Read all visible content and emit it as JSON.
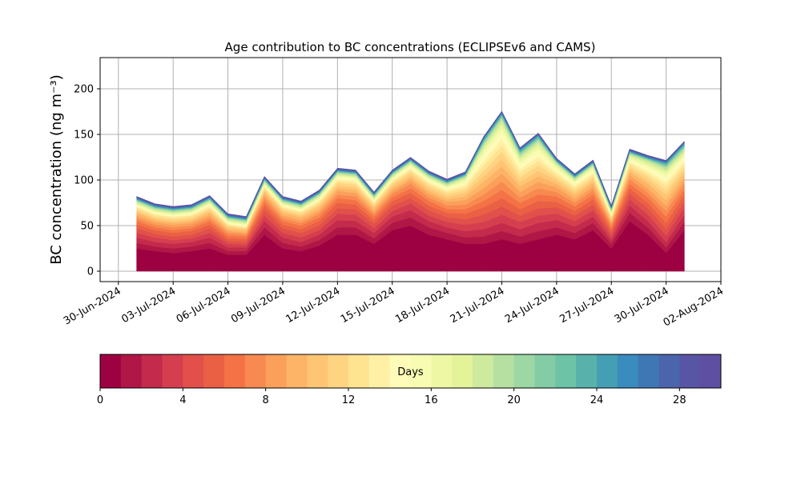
{
  "chart_data": {
    "type": "stacked_area",
    "title": "Age contribution to BC concentrations (ECLIPSEv6 and CAMS)",
    "y_label": "BC concentration (ng m⁻³)",
    "x": [
      "2024-07-01",
      "2024-07-02",
      "2024-07-03",
      "2024-07-04",
      "2024-07-05",
      "2024-07-06",
      "2024-07-07",
      "2024-07-08",
      "2024-07-09",
      "2024-07-10",
      "2024-07-11",
      "2024-07-12",
      "2024-07-13",
      "2024-07-14",
      "2024-07-15",
      "2024-07-16",
      "2024-07-17",
      "2024-07-18",
      "2024-07-19",
      "2024-07-20",
      "2024-07-21",
      "2024-07-22",
      "2024-07-23",
      "2024-07-24",
      "2024-07-25",
      "2024-07-26",
      "2024-07-27",
      "2024-07-28",
      "2024-07-29",
      "2024-07-30",
      "2024-07-31"
    ],
    "xlim": [
      "2024-06-29",
      "2024-08-02"
    ],
    "xticks": [
      {
        "value": "2024-06-30",
        "label": "30-Jun-2024"
      },
      {
        "value": "2024-07-03",
        "label": "03-Jul-2024"
      },
      {
        "value": "2024-07-06",
        "label": "06-Jul-2024"
      },
      {
        "value": "2024-07-09",
        "label": "09-Jul-2024"
      },
      {
        "value": "2024-07-12",
        "label": "12-Jul-2024"
      },
      {
        "value": "2024-07-15",
        "label": "15-Jul-2024"
      },
      {
        "value": "2024-07-18",
        "label": "18-Jul-2024"
      },
      {
        "value": "2024-07-21",
        "label": "21-Jul-2024"
      },
      {
        "value": "2024-07-24",
        "label": "24-Jul-2024"
      },
      {
        "value": "2024-07-27",
        "label": "27-Jul-2024"
      },
      {
        "value": "2024-07-30",
        "label": "30-Jul-2024"
      },
      {
        "value": "2024-08-02",
        "label": "02-Aug-2024"
      }
    ],
    "ylim": [
      -11.4,
      234.2
    ],
    "yticks": [
      0,
      50,
      100,
      150,
      200
    ],
    "grid": true,
    "series": [
      {
        "color": "#9e0142",
        "values": [
          25,
          22,
          20,
          22,
          25,
          18,
          18,
          40,
          25,
          22,
          28,
          40,
          40,
          30,
          45,
          50,
          40,
          35,
          30,
          30,
          35,
          30,
          35,
          40,
          35,
          45,
          25,
          55,
          40,
          20,
          45
        ]
      },
      {
        "color": "#b01646",
        "values": [
          6,
          5,
          5,
          5,
          6,
          4,
          4,
          8,
          6,
          5,
          6,
          8,
          8,
          6,
          8,
          9,
          8,
          7,
          7,
          8,
          9,
          8,
          9,
          8,
          7,
          8,
          5,
          9,
          8,
          6,
          9
        ]
      },
      {
        "color": "#c32a4b",
        "values": [
          6,
          5,
          5,
          5,
          6,
          4,
          4,
          7,
          6,
          5,
          6,
          8,
          7,
          6,
          7,
          8,
          7,
          6,
          7,
          8,
          9,
          8,
          9,
          8,
          7,
          7,
          4,
          8,
          7,
          6,
          8
        ]
      },
      {
        "color": "#d53e4f",
        "values": [
          5,
          5,
          4,
          4,
          5,
          4,
          3,
          6,
          5,
          5,
          5,
          7,
          7,
          5,
          6,
          7,
          6,
          6,
          7,
          8,
          9,
          8,
          8,
          7,
          6,
          7,
          4,
          7,
          7,
          7,
          8
        ]
      },
      {
        "color": "#e1504a",
        "values": [
          5,
          4,
          4,
          4,
          5,
          3,
          3,
          6,
          5,
          5,
          5,
          6,
          6,
          5,
          6,
          6,
          6,
          5,
          6,
          8,
          9,
          7,
          8,
          7,
          6,
          6,
          4,
          6,
          7,
          7,
          7
        ]
      },
      {
        "color": "#ea6045",
        "values": [
          4,
          4,
          4,
          4,
          4,
          3,
          3,
          5,
          4,
          4,
          5,
          6,
          5,
          4,
          5,
          6,
          5,
          5,
          6,
          8,
          9,
          7,
          8,
          6,
          5,
          6,
          3,
          6,
          6,
          7,
          7
        ]
      },
      {
        "color": "#f47245",
        "values": [
          4,
          3,
          3,
          3,
          4,
          3,
          3,
          4,
          4,
          4,
          4,
          5,
          5,
          4,
          4,
          5,
          5,
          4,
          5,
          7,
          9,
          7,
          7,
          6,
          5,
          5,
          3,
          5,
          6,
          7,
          6
        ]
      },
      {
        "color": "#f88950",
        "values": [
          3,
          3,
          3,
          3,
          3,
          3,
          2,
          4,
          3,
          3,
          4,
          4,
          4,
          3,
          4,
          5,
          4,
          4,
          5,
          7,
          9,
          6,
          7,
          5,
          4,
          5,
          3,
          5,
          5,
          6,
          6
        ]
      },
      {
        "color": "#fba05b",
        "values": [
          3,
          3,
          3,
          3,
          3,
          2,
          2,
          3,
          3,
          3,
          3,
          4,
          4,
          3,
          3,
          4,
          4,
          4,
          5,
          7,
          9,
          6,
          7,
          5,
          4,
          4,
          2,
          4,
          5,
          6,
          5
        ]
      },
      {
        "color": "#fdb466",
        "values": [
          3,
          2,
          2,
          2,
          3,
          2,
          2,
          3,
          3,
          3,
          3,
          3,
          3,
          3,
          3,
          3,
          3,
          3,
          4,
          7,
          8,
          6,
          6,
          4,
          4,
          4,
          2,
          4,
          5,
          6,
          5
        ]
      },
      {
        "color": "#fec574",
        "values": [
          2,
          2,
          2,
          2,
          2,
          2,
          2,
          2,
          2,
          2,
          3,
          3,
          3,
          2,
          3,
          3,
          3,
          3,
          4,
          6,
          8,
          5,
          6,
          4,
          3,
          3,
          2,
          3,
          4,
          6,
          4
        ]
      },
      {
        "color": "#fed483",
        "values": [
          2,
          2,
          2,
          2,
          2,
          2,
          1,
          2,
          2,
          2,
          2,
          3,
          3,
          2,
          2,
          3,
          3,
          3,
          3,
          6,
          8,
          5,
          6,
          3,
          3,
          3,
          2,
          3,
          4,
          5,
          4
        ]
      },
      {
        "color": "#fee391",
        "values": [
          2,
          2,
          2,
          2,
          2,
          1,
          1,
          2,
          2,
          2,
          2,
          2,
          2,
          2,
          2,
          2,
          2,
          2,
          3,
          6,
          7,
          5,
          5,
          3,
          3,
          3,
          1,
          3,
          3,
          5,
          4
        ]
      },
      {
        "color": "#fff0a6",
        "values": [
          1,
          1,
          1,
          1,
          2,
          1,
          1,
          1,
          1,
          1,
          2,
          2,
          2,
          1,
          2,
          2,
          2,
          2,
          3,
          5,
          7,
          4,
          5,
          3,
          2,
          2,
          1,
          2,
          3,
          4,
          3
        ]
      },
      {
        "color": "#fffbb9",
        "values": [
          1,
          1,
          1,
          1,
          1,
          1,
          1,
          1,
          1,
          1,
          1,
          2,
          2,
          1,
          1,
          2,
          2,
          2,
          2,
          5,
          6,
          4,
          4,
          2,
          2,
          2,
          1,
          2,
          3,
          4,
          3
        ]
      },
      {
        "color": "#f7fcb2",
        "values": [
          1,
          1,
          1,
          1,
          1,
          1,
          1,
          1,
          1,
          1,
          1,
          1,
          1,
          1,
          1,
          1,
          1,
          1,
          2,
          4,
          5,
          3,
          4,
          2,
          2,
          2,
          1,
          2,
          2,
          3,
          3
        ]
      },
      {
        "color": "#eef8a4",
        "values": [
          1,
          1,
          1,
          1,
          1,
          1,
          1,
          1,
          1,
          1,
          1,
          1,
          1,
          1,
          1,
          1,
          1,
          1,
          2,
          3,
          4,
          3,
          3,
          2,
          1,
          2,
          1,
          2,
          2,
          3,
          2
        ]
      },
      {
        "color": "#e2f399",
        "values": [
          1,
          1,
          1,
          1,
          1,
          1,
          1,
          1,
          1,
          1,
          1,
          1,
          1,
          1,
          1,
          1,
          1,
          1,
          1,
          3,
          3,
          2,
          3,
          2,
          1,
          1,
          1,
          1,
          2,
          2,
          2
        ]
      },
      {
        "color": "#cdea9e",
        "values": [
          1,
          1,
          1,
          1,
          1,
          1,
          1,
          1,
          1,
          1,
          1,
          1,
          1,
          1,
          1,
          1,
          1,
          1,
          1,
          2,
          3,
          2,
          2,
          1,
          1,
          1,
          1,
          1,
          2,
          2,
          2
        ]
      },
      {
        "color": "#b5e0a2",
        "values": [
          1,
          1,
          1,
          1,
          1,
          1,
          1,
          1,
          1,
          1,
          1,
          1,
          1,
          1,
          1,
          1,
          1,
          1,
          1,
          2,
          2,
          2,
          2,
          1,
          1,
          1,
          1,
          1,
          1,
          2,
          2
        ]
      },
      {
        "color": "#9dd7a4",
        "values": [
          0.5,
          0.5,
          0.5,
          0.5,
          0.5,
          0.5,
          0.5,
          0.5,
          0.5,
          0.5,
          0.5,
          0.5,
          0.5,
          0.5,
          0.5,
          0.5,
          0.5,
          0.5,
          0.5,
          1,
          1,
          1,
          1,
          0.5,
          0.5,
          0.5,
          0.5,
          0.5,
          0.5,
          1,
          1
        ]
      },
      {
        "color": "#83cca5",
        "values": [
          0.5,
          0.5,
          0.5,
          0.5,
          0.5,
          0.5,
          0.5,
          0.5,
          0.5,
          0.5,
          0.5,
          0.5,
          0.5,
          0.5,
          0.5,
          0.5,
          0.5,
          0.5,
          0.5,
          1,
          1,
          1,
          1,
          0.5,
          0.5,
          0.5,
          0.5,
          0.5,
          0.5,
          1,
          1
        ]
      },
      {
        "color": "#6cc3a5",
        "values": [
          0.5,
          0.5,
          0.5,
          0.5,
          0.5,
          0.5,
          0.5,
          0.5,
          0.5,
          0.5,
          0.5,
          0.5,
          0.5,
          0.5,
          0.5,
          0.5,
          0.5,
          0.5,
          0.5,
          1,
          1,
          1,
          1,
          0.5,
          0.5,
          0.5,
          0.5,
          0.5,
          0.5,
          1,
          1
        ]
      },
      {
        "color": "#58b2ab",
        "values": [
          0.5,
          0.5,
          0.5,
          0.5,
          0.5,
          0.5,
          0.5,
          0.5,
          0.5,
          0.5,
          0.5,
          0.5,
          0.5,
          0.5,
          0.5,
          0.5,
          0.5,
          0.5,
          0.5,
          1,
          1,
          1,
          1,
          0.5,
          0.5,
          0.5,
          0.5,
          0.5,
          0.5,
          1,
          1
        ]
      },
      {
        "color": "#449fb4",
        "values": [
          0.5,
          0.5,
          0.5,
          0.5,
          0.5,
          0.5,
          0.5,
          0.5,
          0.5,
          0.5,
          0.5,
          0.5,
          0.5,
          0.5,
          0.5,
          0.5,
          0.5,
          0.5,
          0.5,
          1,
          1,
          1,
          1,
          0.5,
          0.5,
          0.5,
          0.5,
          0.5,
          0.5,
          1,
          1
        ]
      },
      {
        "color": "#3a8bbe",
        "values": [
          0.5,
          0.5,
          0.5,
          0.5,
          0.5,
          0.5,
          0.5,
          0.5,
          0.5,
          0.5,
          0.5,
          0.5,
          0.5,
          0.5,
          0.5,
          0.5,
          0.5,
          0.5,
          0.5,
          0.5,
          0.5,
          0.5,
          0.5,
          0.5,
          0.5,
          0.5,
          0.5,
          0.5,
          0.5,
          0.5,
          0.5
        ]
      },
      {
        "color": "#3f77b5",
        "values": [
          0.5,
          0.5,
          0.5,
          0.5,
          0.5,
          0.5,
          0.5,
          0.5,
          0.5,
          0.5,
          0.5,
          0.5,
          0.5,
          0.5,
          0.5,
          0.5,
          0.5,
          0.5,
          0.5,
          0.5,
          0.5,
          0.5,
          0.5,
          0.5,
          0.5,
          0.5,
          0.5,
          0.5,
          0.5,
          0.5,
          0.5
        ]
      },
      {
        "color": "#4b65ad",
        "values": [
          0.5,
          0.5,
          0.5,
          0.5,
          0.5,
          0.5,
          0.5,
          0.5,
          0.5,
          0.5,
          0.5,
          0.5,
          0.5,
          0.5,
          0.5,
          0.5,
          0.5,
          0.5,
          0.5,
          0.5,
          0.5,
          0.5,
          0.5,
          0.5,
          0.5,
          0.5,
          0.5,
          0.5,
          0.5,
          0.5,
          0.5
        ]
      },
      {
        "color": "#5955a5",
        "values": [
          0.5,
          0.5,
          0.5,
          0.5,
          0.5,
          0.5,
          0.5,
          0.5,
          0.5,
          0.5,
          0.5,
          0.5,
          0.5,
          0.5,
          0.5,
          0.5,
          0.5,
          0.5,
          0.5,
          0.5,
          0.5,
          0.5,
          0.5,
          0.5,
          0.5,
          0.5,
          0.5,
          0.5,
          0.5,
          0.5,
          0.5
        ]
      },
      {
        "color": "#5e4fa2",
        "values": [
          0.5,
          0.5,
          0.5,
          0.5,
          0.5,
          0.5,
          0.5,
          0.5,
          0.5,
          0.5,
          0.5,
          0.5,
          0.5,
          0.5,
          0.5,
          0.5,
          0.5,
          0.5,
          0.5,
          0.5,
          0.5,
          0.5,
          0.5,
          0.5,
          0.5,
          0.5,
          0.5,
          0.5,
          0.5,
          0.5,
          0.5
        ]
      }
    ],
    "colorbar": {
      "label": "Days",
      "bins": [
        0,
        1,
        2,
        3,
        4,
        5,
        6,
        7,
        8,
        9,
        10,
        11,
        12,
        13,
        14,
        15,
        16,
        17,
        18,
        19,
        20,
        21,
        22,
        23,
        24,
        25,
        26,
        27,
        28,
        29,
        30
      ],
      "ticks": [
        0,
        4,
        8,
        12,
        16,
        20,
        24,
        28
      ]
    }
  }
}
